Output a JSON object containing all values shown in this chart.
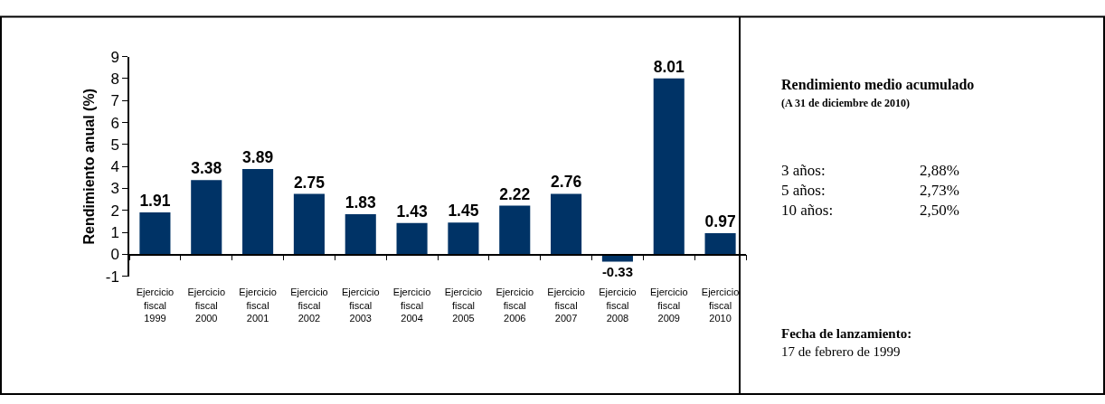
{
  "chart_data": {
    "type": "bar",
    "ylabel": "Rendimiento anual (%)",
    "categories": [
      "Ejercicio fiscal 1999",
      "Ejercicio fiscal 2000",
      "Ejercicio fiscal 2001",
      "Ejercicio fiscal 2002",
      "Ejercicio fiscal 2003",
      "Ejercicio fiscal 2004",
      "Ejercicio fiscal 2005",
      "Ejercicio fiscal 2006",
      "Ejercicio fiscal 2007",
      "Ejercicio fiscal 2008",
      "Ejercicio fiscal 2009",
      "Ejercicio fiscal 2010"
    ],
    "values": [
      1.91,
      3.38,
      3.89,
      2.75,
      1.83,
      1.43,
      1.45,
      2.22,
      2.76,
      -0.33,
      8.01,
      0.97
    ],
    "color": "#003366",
    "ylim": [
      -1,
      9
    ],
    "yticks": [
      -1,
      0,
      1,
      2,
      3,
      4,
      5,
      6,
      7,
      8,
      9
    ],
    "data_labels": true,
    "annotations": [
      "Rendimiento medio acumulado",
      "(A 31 de diciembre de 2010)",
      "3 años:",
      "2,88%",
      "5 años:",
      "2,73%",
      "10 años:",
      "2,50%",
      "Fecha de lanzamiento:",
      "17 de febrero de 1999"
    ]
  }
}
